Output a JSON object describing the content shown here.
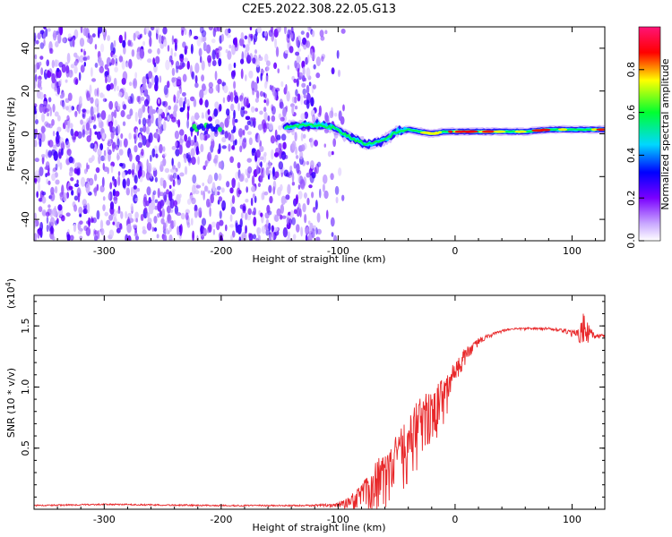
{
  "title": "C2E5.2022.308.22.05.G13",
  "chart_data": [
    {
      "type": "heatmap",
      "xlabel": "Height of straight line (km)",
      "ylabel": "Frequency (Hz)",
      "xlim": [
        -360,
        128
      ],
      "ylim": [
        -50,
        50
      ],
      "x_ticks": [
        -300,
        -200,
        -100,
        0,
        100
      ],
      "y_ticks": [
        -40,
        -20,
        0,
        20,
        40
      ],
      "colorbar": {
        "label": "Normalized spectral amplitude",
        "range": [
          0,
          1
        ],
        "ticks": [
          "0.0",
          "0.2",
          "0.4",
          "0.6",
          "0.8"
        ],
        "colormap": [
          "#ffffff",
          "#9a00ff",
          "#0000ff",
          "#00e5ff",
          "#00ff00",
          "#ffff00",
          "#ff0000",
          "#ff1493"
        ]
      },
      "signal_trace": [
        [
          -145,
          3
        ],
        [
          -130,
          4
        ],
        [
          -115,
          4
        ],
        [
          -105,
          3
        ],
        [
          -95,
          0
        ],
        [
          -85,
          -3
        ],
        [
          -75,
          -5
        ],
        [
          -65,
          -4
        ],
        [
          -58,
          -2
        ],
        [
          -50,
          1
        ],
        [
          -40,
          2
        ],
        [
          -30,
          1
        ],
        [
          -20,
          0
        ],
        [
          -10,
          1
        ],
        [
          0,
          1
        ],
        [
          20,
          1
        ],
        [
          40,
          1
        ],
        [
          60,
          1
        ],
        [
          80,
          2
        ],
        [
          100,
          2
        ],
        [
          128,
          2
        ]
      ],
      "noise_region_xmax": -105,
      "isolated_patch": [
        [
          -225,
          3
        ],
        [
          -200,
          4
        ]
      ]
    },
    {
      "type": "line",
      "xlabel": "Height of straight line (km)",
      "ylabel": "SNR (10 * v/v)",
      "multiplier": "(x10",
      "multiplier_exponent": "4",
      "multiplier_close": ")",
      "xlim": [
        -360,
        128
      ],
      "ylim": [
        0,
        1.75
      ],
      "x_ticks": [
        -300,
        -200,
        -100,
        0,
        100
      ],
      "y_ticks": [
        0.5,
        1.0,
        1.5
      ],
      "line_color": "#e8282a",
      "x": [
        -360,
        -300,
        -200,
        -130,
        -100,
        -85,
        -70,
        -60,
        -50,
        -40,
        -30,
        -20,
        -10,
        0,
        10,
        20,
        30,
        40,
        50,
        60,
        70,
        80,
        90,
        100,
        105,
        110,
        115,
        120,
        128
      ],
      "y": [
        0.03,
        0.04,
        0.03,
        0.03,
        0.04,
        0.1,
        0.25,
        0.32,
        0.45,
        0.6,
        0.75,
        0.85,
        0.95,
        1.15,
        1.3,
        1.38,
        1.43,
        1.46,
        1.48,
        1.48,
        1.48,
        1.48,
        1.47,
        1.45,
        1.43,
        1.55,
        1.45,
        1.42,
        1.42
      ],
      "spike_amplitude": [
        0,
        0,
        0,
        0,
        0.02,
        0.12,
        0.3,
        0.35,
        0.38,
        0.4,
        0.4,
        0.35,
        0.3,
        0.15,
        0.08,
        0.04,
        0.02,
        0.01,
        0.01,
        0.01,
        0.01,
        0.01,
        0.02,
        0.04,
        0.1,
        0.18,
        0.12,
        0.03,
        0.02
      ]
    }
  ]
}
